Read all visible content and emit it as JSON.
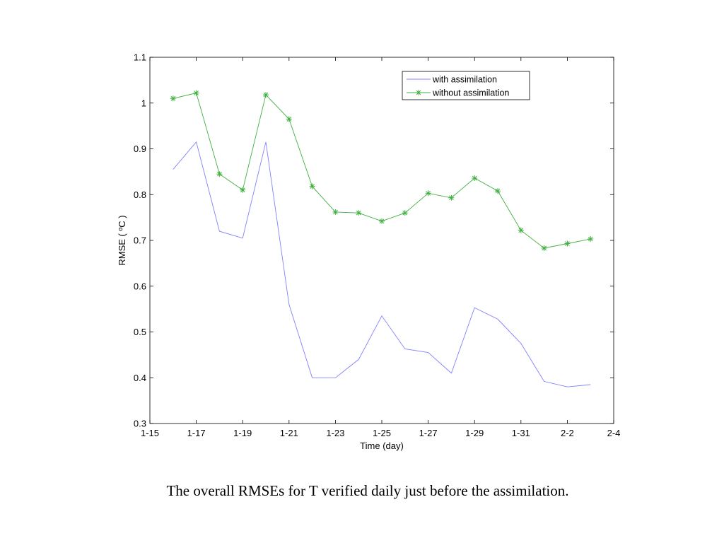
{
  "chart_data": {
    "type": "line",
    "title": "",
    "xlabel": "Time (day)",
    "ylabel": "RMSE ( ºC )",
    "xlim": [
      0,
      20
    ],
    "ylim": [
      0.3,
      1.1
    ],
    "x_ticks": [
      0,
      2,
      4,
      6,
      8,
      10,
      12,
      14,
      16,
      18,
      20
    ],
    "x_tick_labels": [
      "1-15",
      "1-17",
      "1-19",
      "1-21",
      "1-23",
      "1-25",
      "1-27",
      "1-29",
      "1-31",
      "2-2",
      "2-4"
    ],
    "y_ticks": [
      0.3,
      0.4,
      0.5,
      0.6,
      0.7,
      0.8,
      0.9,
      1.0,
      1.1
    ],
    "y_tick_labels": [
      "0.3",
      "0.4",
      "0.5",
      "0.6",
      "0.7",
      "0.8",
      "0.9",
      "1",
      "1.1"
    ],
    "x": [
      1,
      2,
      3,
      4,
      5,
      6,
      7,
      8,
      9,
      10,
      11,
      12,
      13,
      14,
      15,
      16,
      17,
      18,
      19
    ],
    "legend_position": "top-right",
    "grid": false,
    "series": [
      {
        "name": "with assimilation",
        "color": "#8080ff",
        "marker": "none",
        "values": [
          0.855,
          0.915,
          0.72,
          0.705,
          0.915,
          0.56,
          0.4,
          0.4,
          0.44,
          0.535,
          0.463,
          0.455,
          0.41,
          0.553,
          0.528,
          0.475,
          0.392,
          0.38,
          0.385
        ]
      },
      {
        "name": "without assimilation",
        "color": "#40b040",
        "marker": "star",
        "values": [
          1.01,
          1.022,
          0.845,
          0.81,
          1.018,
          0.965,
          0.818,
          0.762,
          0.76,
          0.742,
          0.76,
          0.803,
          0.793,
          0.836,
          0.808,
          0.722,
          0.683,
          0.693,
          0.703
        ]
      }
    ]
  },
  "caption": "The overall RMSEs for T verified daily just before the assimilation."
}
